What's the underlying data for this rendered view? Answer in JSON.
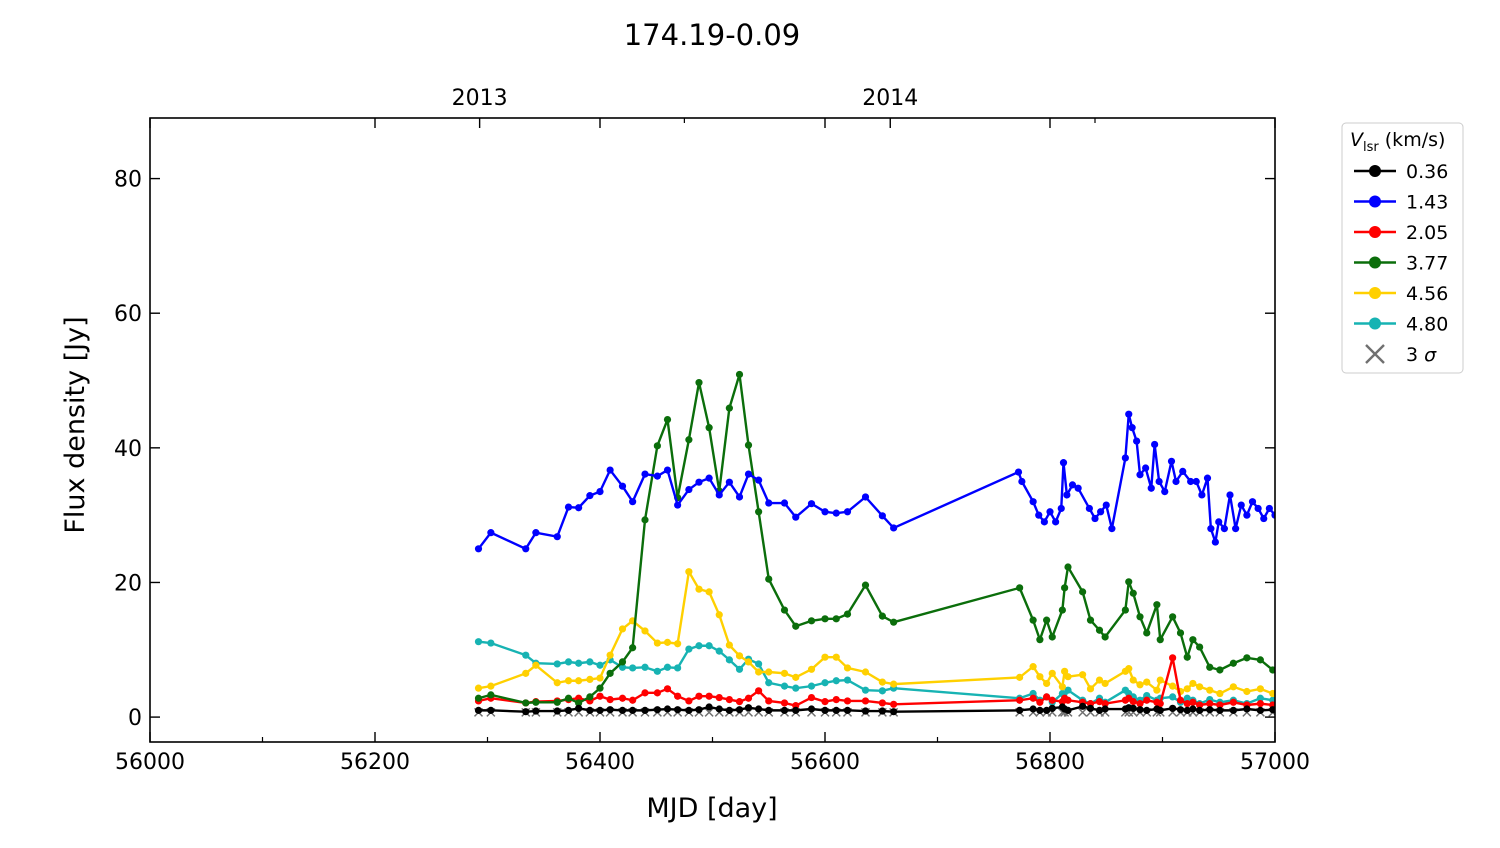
{
  "chart_data": {
    "type": "line",
    "title": "174.19-0.09",
    "xlabel": "MJD [day]",
    "ylabel": "Flux density [Jy]",
    "xlim": [
      56000,
      57000
    ],
    "ylim": [
      -3.7,
      89
    ],
    "xticks": [
      56000,
      56200,
      56400,
      56600,
      56800,
      57000
    ],
    "xminor": [
      56100,
      56300,
      56500,
      56700,
      56900
    ],
    "yticks": [
      0,
      20,
      40,
      60,
      80
    ],
    "top_axis": {
      "ticks": [
        {
          "mjd": 56293,
          "label": "2013"
        },
        {
          "mjd": 56658,
          "label": "2014"
        }
      ],
      "minor": [
        56475,
        56840
      ]
    },
    "grid": false,
    "legend": {
      "title_main": "V",
      "title_sub": "lsr",
      "title_unit": " (km/s)",
      "placement": "outside-right-top"
    },
    "early_mjd": [
      56292,
      56303,
      56334,
      56343,
      56362,
      56372,
      56381,
      56391,
      56400,
      56409,
      56420,
      56429,
      56440,
      56451,
      56460,
      56469,
      56479,
      56488,
      56497,
      56506,
      56515,
      56524,
      56532,
      56541,
      56550,
      56564,
      56574,
      56588,
      56600,
      56610,
      56620,
      56636,
      56651,
      56661
    ],
    "late_mjd": [
      56773,
      56785,
      56791,
      56797,
      56802,
      56811,
      56813,
      56816,
      56829,
      56836,
      56844,
      56849,
      56867,
      56870,
      56874,
      56880,
      56886,
      56895,
      56898,
      56909,
      56916,
      56922,
      56927,
      56933,
      56942,
      56951,
      56963,
      56975,
      56987,
      56998
    ],
    "series": [
      {
        "name": "0.36",
        "color": "#000000",
        "early": [
          1.0,
          1.0,
          0.8,
          0.9,
          0.9,
          1.0,
          1.3,
          1.0,
          1.0,
          1.1,
          1.0,
          1.0,
          1.0,
          1.1,
          1.2,
          1.1,
          1.0,
          1.1,
          1.5,
          1.2,
          1.0,
          1.1,
          1.4,
          1.2,
          1.0,
          1.0,
          1.0,
          1.2,
          1.0,
          1.0,
          1.0,
          0.9,
          0.9,
          0.8
        ],
        "late": [
          1.0,
          1.2,
          1.0,
          1.0,
          1.3,
          1.5,
          1.2,
          1.0,
          1.6,
          1.3,
          1.0,
          1.2,
          1.2,
          1.4,
          1.3,
          1.1,
          1.0,
          1.2,
          1.0,
          1.3,
          1.1,
          1.0,
          1.2,
          1.0,
          1.1,
          1.0,
          1.0,
          1.2,
          1.0,
          1.1
        ]
      },
      {
        "name": "1.43",
        "color": "#0000ff",
        "early": [
          25.0,
          27.4,
          25.0,
          27.4,
          26.8,
          31.2,
          31.1,
          32.9,
          33.5,
          36.7,
          34.3,
          32.0,
          36.1,
          35.8,
          36.7,
          31.5,
          33.8,
          34.9,
          35.5,
          33.0,
          34.9,
          32.7,
          36.1,
          35.2,
          31.8,
          31.8,
          29.7,
          31.7,
          30.5,
          30.3,
          30.5,
          32.7,
          29.9,
          28.1
        ],
        "late_points": [
          [
            56772,
            36.4
          ],
          [
            56775,
            35.0
          ],
          [
            56785,
            32.0
          ],
          [
            56790,
            30.0
          ],
          [
            56795,
            29.0
          ],
          [
            56800,
            30.5
          ],
          [
            56805,
            29.0
          ],
          [
            56810,
            31.0
          ],
          [
            56812,
            37.8
          ],
          [
            56815,
            33.0
          ],
          [
            56820,
            34.5
          ],
          [
            56825,
            34.0
          ],
          [
            56835,
            31.0
          ],
          [
            56840,
            29.5
          ],
          [
            56845,
            30.5
          ],
          [
            56850,
            31.5
          ],
          [
            56855,
            28.0
          ],
          [
            56867,
            38.5
          ],
          [
            56870,
            45.0
          ],
          [
            56873,
            43.0
          ],
          [
            56877,
            41.0
          ],
          [
            56880,
            36.0
          ],
          [
            56885,
            37.0
          ],
          [
            56890,
            34.0
          ],
          [
            56893,
            40.5
          ],
          [
            56897,
            35.0
          ],
          [
            56902,
            33.5
          ],
          [
            56908,
            38.0
          ],
          [
            56912,
            35.0
          ],
          [
            56918,
            36.5
          ],
          [
            56925,
            35.0
          ],
          [
            56930,
            35.0
          ],
          [
            56935,
            33.0
          ],
          [
            56940,
            35.5
          ],
          [
            56943,
            28.0
          ],
          [
            56947,
            26.0
          ],
          [
            56950,
            29.0
          ],
          [
            56955,
            28.0
          ],
          [
            56960,
            33.0
          ],
          [
            56965,
            28.0
          ],
          [
            56970,
            31.5
          ],
          [
            56975,
            30.0
          ],
          [
            56980,
            32.0
          ],
          [
            56985,
            31.0
          ],
          [
            56990,
            29.5
          ],
          [
            56995,
            31.0
          ],
          [
            57000,
            30.0
          ]
        ]
      },
      {
        "name": "2.05",
        "color": "#ff0000",
        "early": [
          2.4,
          2.8,
          2.1,
          2.3,
          2.4,
          2.6,
          2.8,
          2.4,
          3.1,
          2.6,
          2.8,
          2.5,
          3.6,
          3.6,
          4.2,
          3.1,
          2.4,
          3.1,
          3.1,
          2.9,
          2.6,
          2.3,
          2.8,
          3.9,
          2.4,
          2.1,
          1.7,
          2.9,
          2.3,
          2.6,
          2.4,
          2.4,
          2.1,
          1.9
        ],
        "late": [
          2.5,
          2.8,
          2.2,
          3.0,
          2.5,
          2.3,
          2.8,
          2.5,
          2.2,
          2.0,
          2.3,
          2.0,
          2.5,
          2.8,
          2.3,
          2.0,
          2.5,
          2.2,
          2.0,
          8.8,
          2.5,
          2.0,
          2.2,
          1.8,
          2.0,
          1.8,
          2.2,
          1.8,
          2.0,
          1.8
        ]
      },
      {
        "name": "3.77",
        "color": "#0b6e0b",
        "early": [
          2.8,
          3.3,
          2.1,
          2.2,
          2.2,
          2.8,
          2.1,
          3.0,
          4.3,
          6.5,
          8.2,
          10.3,
          29.3,
          40.3,
          44.2,
          32.6,
          41.2,
          49.7,
          43.0,
          33.6,
          45.9,
          50.9,
          40.4,
          30.5,
          20.5,
          15.9,
          13.5,
          14.3,
          14.6,
          14.6,
          15.3,
          19.6,
          15.0,
          14.1
        ],
        "late": [
          19.2,
          14.4,
          11.5,
          14.4,
          11.9,
          15.9,
          19.2,
          22.3,
          18.6,
          14.4,
          12.9,
          11.9,
          15.9,
          20.1,
          18.4,
          14.9,
          12.5,
          16.7,
          11.5,
          14.9,
          12.5,
          8.9,
          11.5,
          10.4,
          7.4,
          7.0,
          8.0,
          8.8,
          8.5,
          7.0
        ]
      },
      {
        "name": "4.56",
        "color": "#ffd000",
        "early": [
          4.3,
          4.6,
          6.5,
          7.7,
          5.1,
          5.4,
          5.4,
          5.6,
          5.8,
          9.2,
          13.1,
          14.3,
          12.8,
          11.0,
          11.1,
          10.9,
          21.6,
          19.0,
          18.6,
          15.2,
          10.7,
          9.1,
          8.2,
          6.7,
          6.7,
          6.5,
          5.9,
          7.1,
          8.9,
          8.9,
          7.3,
          6.7,
          5.2,
          4.9
        ],
        "late": [
          5.9,
          7.5,
          6.0,
          5.0,
          6.5,
          4.5,
          6.8,
          6.0,
          6.3,
          4.2,
          5.5,
          5.0,
          6.8,
          7.2,
          5.5,
          4.8,
          5.2,
          4.0,
          5.5,
          4.6,
          3.8,
          4.2,
          5.0,
          4.5,
          4.0,
          3.5,
          4.5,
          3.8,
          4.2,
          3.5
        ]
      },
      {
        "name": "4.80",
        "color": "#17b3b3",
        "early": [
          11.2,
          11.0,
          9.2,
          8.0,
          7.9,
          8.2,
          8.0,
          8.2,
          7.7,
          8.5,
          7.4,
          7.3,
          7.4,
          6.8,
          7.4,
          7.3,
          10.1,
          10.6,
          10.6,
          9.8,
          8.5,
          7.1,
          8.6,
          7.9,
          5.1,
          4.6,
          4.3,
          4.6,
          5.1,
          5.4,
          5.5,
          4.0,
          3.9,
          4.3
        ],
        "late": [
          2.8,
          3.5,
          2.5,
          3.0,
          2.2,
          3.5,
          2.8,
          4.0,
          2.5,
          2.0,
          2.8,
          2.2,
          4.0,
          3.5,
          3.0,
          2.5,
          3.2,
          2.5,
          2.8,
          3.0,
          2.2,
          2.8,
          2.5,
          2.0,
          2.6,
          2.2,
          2.5,
          2.0,
          2.8,
          2.5
        ]
      }
    ],
    "sigma": {
      "name": "3",
      "symbol": "σ",
      "color": "#707070",
      "value": 0.7
    }
  }
}
